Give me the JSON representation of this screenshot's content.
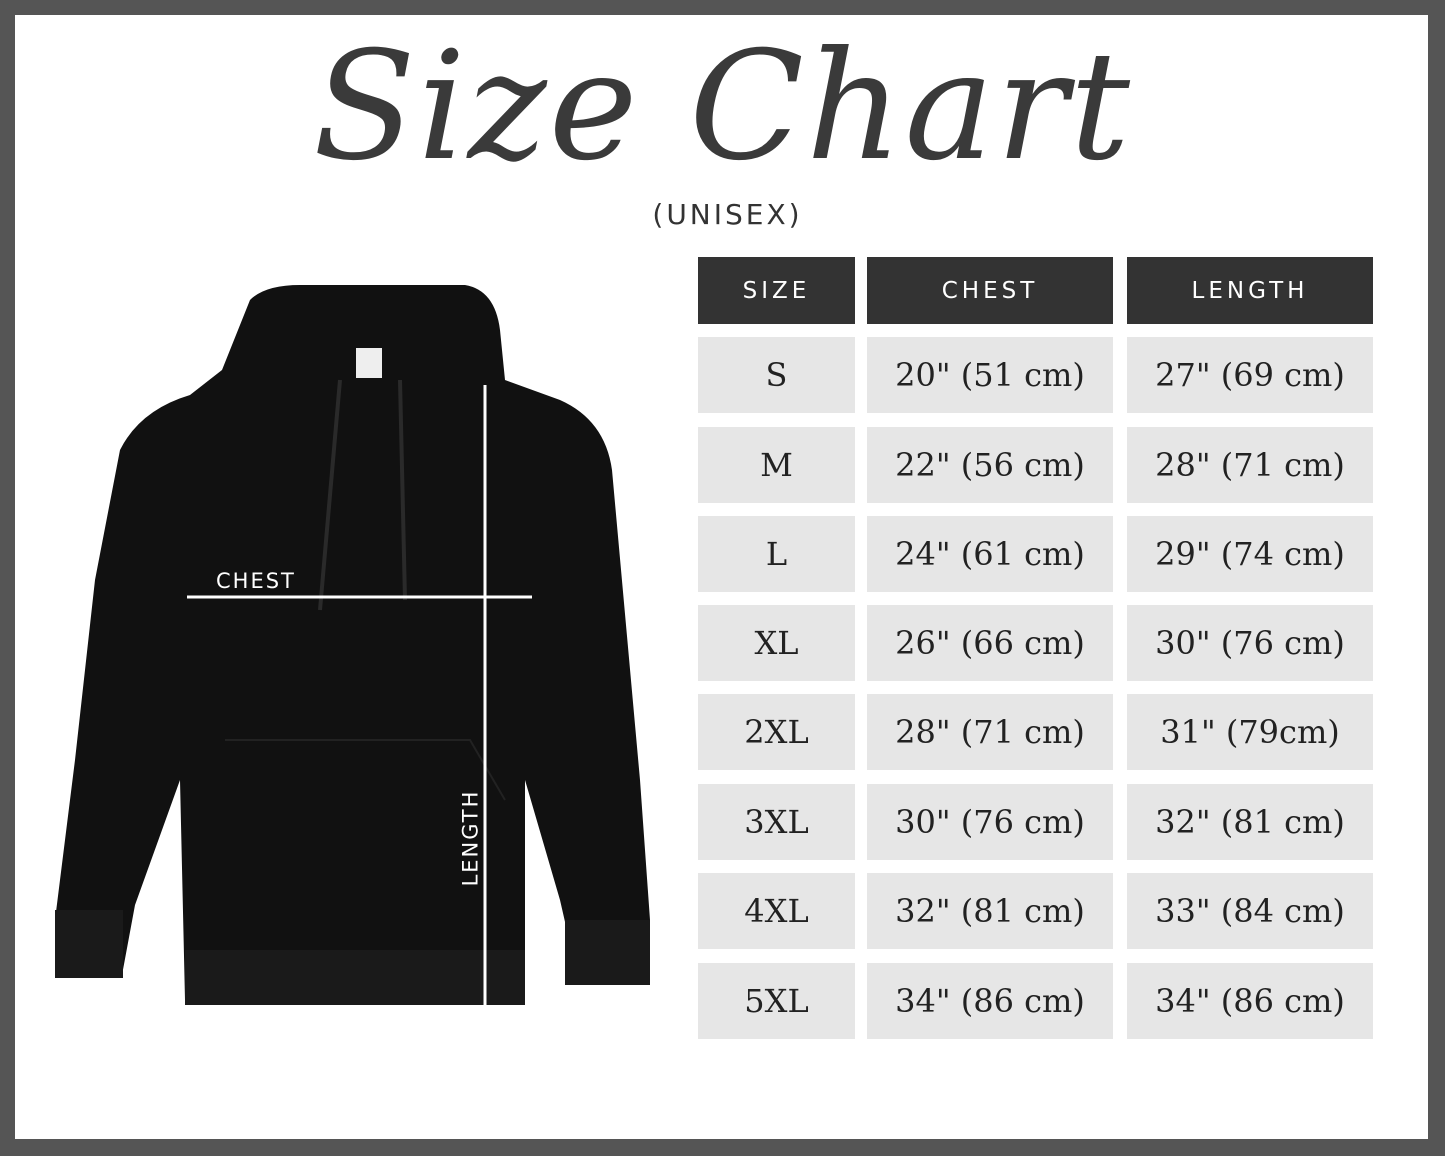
{
  "title": "Size Chart",
  "subtitle": "(UNISEX)",
  "garment": {
    "chest_label": "CHEST",
    "length_label": "LENGTH",
    "color": "#111111"
  },
  "colors": {
    "border": "#555555",
    "header_bg": "#333333",
    "row_bg": "#e6e6e6"
  },
  "table": {
    "headers": [
      "SIZE",
      "CHEST",
      "LENGTH"
    ],
    "rows": [
      [
        "S",
        "20\" (51 cm)",
        "27\" (69 cm)"
      ],
      [
        "M",
        "22\" (56 cm)",
        "28\" (71 cm)"
      ],
      [
        "L",
        "24\" (61 cm)",
        "29\" (74 cm)"
      ],
      [
        "XL",
        "26\" (66 cm)",
        "30\" (76 cm)"
      ],
      [
        "2XL",
        "28\" (71 cm)",
        "31\" (79cm)"
      ],
      [
        "3XL",
        "30\" (76 cm)",
        "32\" (81 cm)"
      ],
      [
        "4XL",
        "32\" (81 cm)",
        "33\" (84 cm)"
      ],
      [
        "5XL",
        "34\" (86 cm)",
        "34\" (86 cm)"
      ]
    ]
  }
}
